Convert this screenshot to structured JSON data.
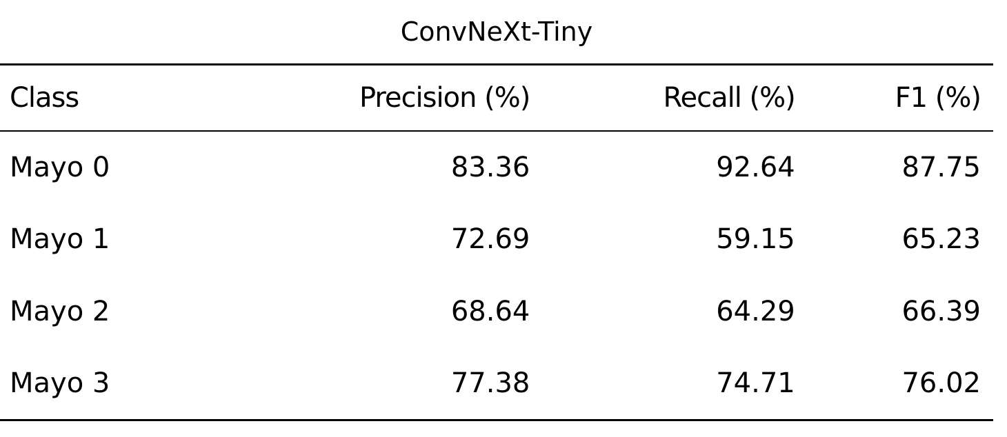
{
  "table": {
    "caption": "ConvNeXt-Tiny",
    "header": [
      "Class",
      "Precision (%)",
      "Recall (%)",
      "F1 (%)"
    ],
    "rows": [
      [
        "Mayo 0",
        "83.36",
        "92.64",
        "87.75"
      ],
      [
        "Mayo 1",
        "72.69",
        "59.15",
        "65.23"
      ],
      [
        "Mayo 2",
        "68.64",
        "64.29",
        "66.39"
      ],
      [
        "Mayo 3",
        "77.38",
        "74.71",
        "76.02"
      ]
    ]
  }
}
